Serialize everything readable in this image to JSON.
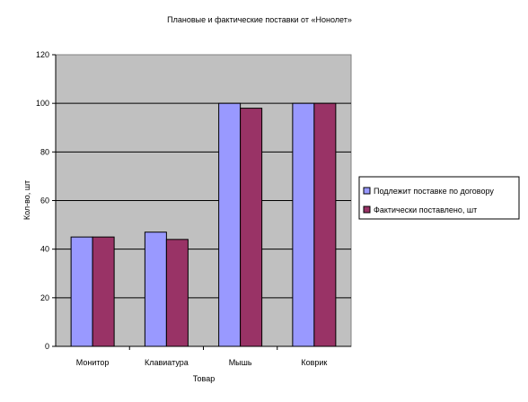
{
  "chart_data": {
    "type": "bar",
    "title": "Плановые и фактические поставки от «Нонолет»",
    "xlabel": "Товар",
    "ylabel": "Кол-во, шт",
    "categories": [
      "Монитор",
      "Клавиатура",
      "Мышь",
      "Коврик"
    ],
    "series": [
      {
        "name": "Подлежит поставке по договору",
        "values": [
          45,
          47,
          100,
          100
        ],
        "color": "#9999ff"
      },
      {
        "name": "Фактически поставлено, шт",
        "values": [
          45,
          44,
          98,
          100
        ],
        "color": "#993366"
      }
    ],
    "ylim": [
      0,
      120
    ],
    "yticks": [
      0,
      20,
      40,
      60,
      80,
      100,
      120
    ],
    "grid": true,
    "plot_background": "#c0c0c0",
    "legend_position": "right"
  }
}
